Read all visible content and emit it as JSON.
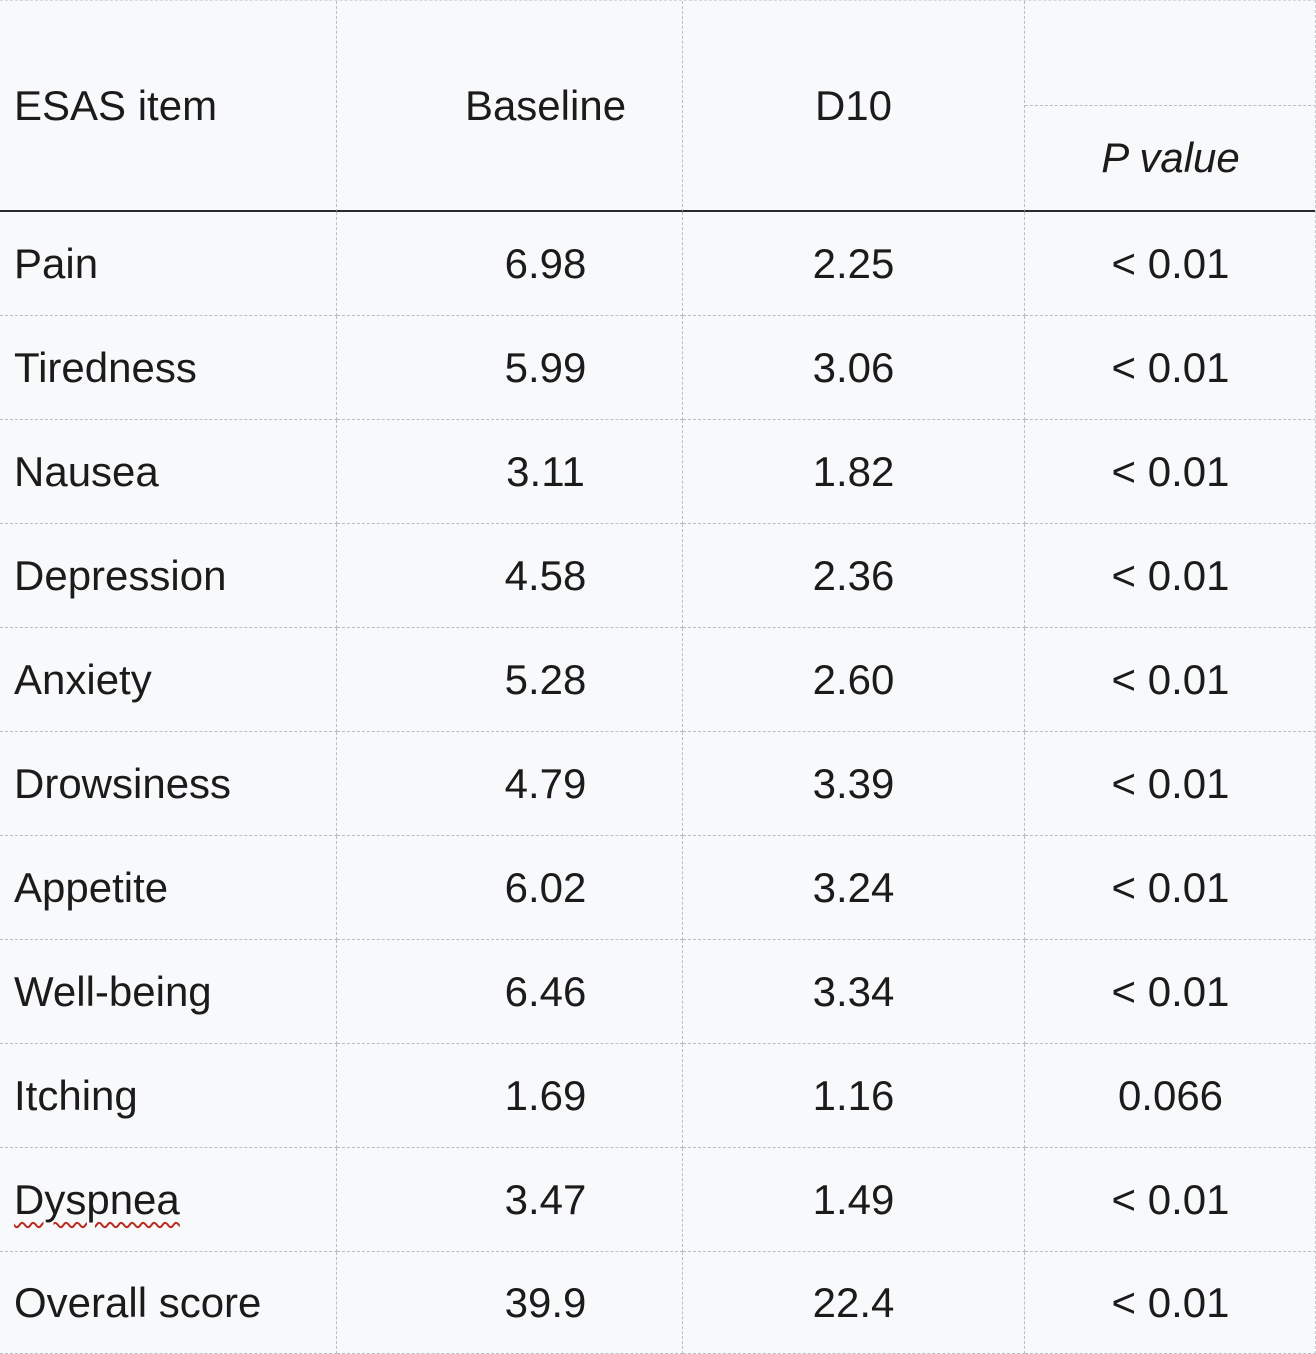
{
  "table": {
    "columns": [
      "ESAS item",
      "Baseline",
      "D10",
      "P value"
    ],
    "rows": [
      {
        "item": "Pain",
        "baseline": "6.98",
        "d10": "2.25",
        "p": "< 0.01"
      },
      {
        "item": "Tiredness",
        "baseline": "5.99",
        "d10": "3.06",
        "p": "< 0.01"
      },
      {
        "item": "Nausea",
        "baseline": "3.11",
        "d10": "1.82",
        "p": "< 0.01"
      },
      {
        "item": "Depression",
        "baseline": "4.58",
        "d10": "2.36",
        "p": "< 0.01"
      },
      {
        "item": "Anxiety",
        "baseline": "5.28",
        "d10": "2.60",
        "p": "< 0.01"
      },
      {
        "item": "Drowsiness",
        "baseline": "4.79",
        "d10": "3.39",
        "p": "< 0.01"
      },
      {
        "item": "Appetite",
        "baseline": "6.02",
        "d10": "3.24",
        "p": "< 0.01"
      },
      {
        "item": "Well-being",
        "baseline": "6.46",
        "d10": "3.34",
        "p": "< 0.01"
      },
      {
        "item": "Itching",
        "baseline": "1.69",
        "d10": "1.16",
        "p": "0.066"
      },
      {
        "item": "Dyspnea",
        "baseline": "3.47",
        "d10": "1.49",
        "p": "< 0.01",
        "misspelled": true
      },
      {
        "item": "Overall score",
        "baseline": "39.9",
        "d10": "22.4",
        "p": "< 0.01"
      }
    ]
  },
  "colors": {
    "text": "#1b1b1b",
    "background": "#f8f9fb",
    "gridline": "#b9bdc4",
    "header_rule": "#2b2b2b",
    "spellcheck_underline": "#b92d21"
  }
}
